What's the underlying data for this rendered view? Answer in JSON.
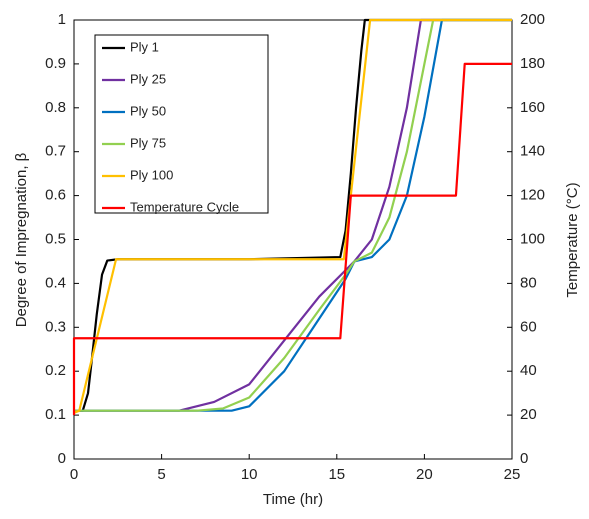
{
  "chart_data": {
    "type": "line",
    "x_label": "Time (hr)",
    "y_label": "Degree of Impregnation, β",
    "y2_label": "Temperature (°C)",
    "xlim": [
      0,
      25
    ],
    "xticks": [
      0,
      5,
      10,
      15,
      20,
      25
    ],
    "ylim": [
      0,
      1
    ],
    "yticks": [
      0,
      0.1,
      0.2,
      0.3,
      0.4,
      0.5,
      0.6,
      0.7,
      0.8,
      0.9,
      1
    ],
    "y2lim": [
      0,
      200
    ],
    "y2ticks": [
      0,
      20,
      40,
      60,
      80,
      100,
      120,
      140,
      160,
      180,
      200
    ],
    "legend": "upper left",
    "series": [
      {
        "name": "Ply 1",
        "color": "#000000",
        "x": [
          0,
          0.5,
          0.8,
          1.0,
          1.3,
          1.6,
          1.9,
          2.5,
          10,
          15.2,
          15.5,
          15.8,
          16.1,
          16.4,
          16.6,
          25
        ],
        "values": [
          0.11,
          0.11,
          0.15,
          0.22,
          0.33,
          0.42,
          0.452,
          0.455,
          0.455,
          0.46,
          0.52,
          0.65,
          0.8,
          0.93,
          1,
          1
        ]
      },
      {
        "name": "Ply 25",
        "color": "#7030a0",
        "x": [
          0,
          6,
          8,
          10,
          12,
          14,
          15.5,
          16,
          17,
          18,
          19,
          19.8,
          25
        ],
        "values": [
          0.11,
          0.11,
          0.13,
          0.17,
          0.27,
          0.37,
          0.43,
          0.45,
          0.5,
          0.62,
          0.8,
          1,
          1
        ]
      },
      {
        "name": "Ply 50",
        "color": "#0070c0",
        "x": [
          0,
          8,
          9,
          10,
          12,
          14,
          15.5,
          16,
          17,
          18,
          19,
          20,
          21,
          25
        ],
        "values": [
          0.11,
          0.11,
          0.11,
          0.12,
          0.2,
          0.32,
          0.41,
          0.45,
          0.46,
          0.5,
          0.6,
          0.78,
          1,
          1
        ]
      },
      {
        "name": "Ply 75",
        "color": "#92d050",
        "x": [
          0,
          7,
          8.5,
          10,
          12,
          14,
          15.5,
          16,
          17,
          18,
          19,
          20,
          20.5,
          25
        ],
        "values": [
          0.11,
          0.11,
          0.115,
          0.14,
          0.23,
          0.34,
          0.42,
          0.45,
          0.47,
          0.55,
          0.7,
          0.9,
          1,
          1
        ]
      },
      {
        "name": "Ply 100",
        "color": "#ffc000",
        "x": [
          0,
          0.3,
          2.4,
          15.4,
          16.9,
          25
        ],
        "values": [
          0.105,
          0.11,
          0.455,
          0.455,
          1,
          1
        ]
      },
      {
        "name": "Temperature Cycle",
        "color": "#ff0000",
        "axis": "y2",
        "x": [
          0,
          0,
          15.2,
          15.8,
          21.8,
          22.3,
          25
        ],
        "values": [
          20,
          55,
          55,
          120,
          120,
          180,
          180
        ]
      }
    ]
  }
}
